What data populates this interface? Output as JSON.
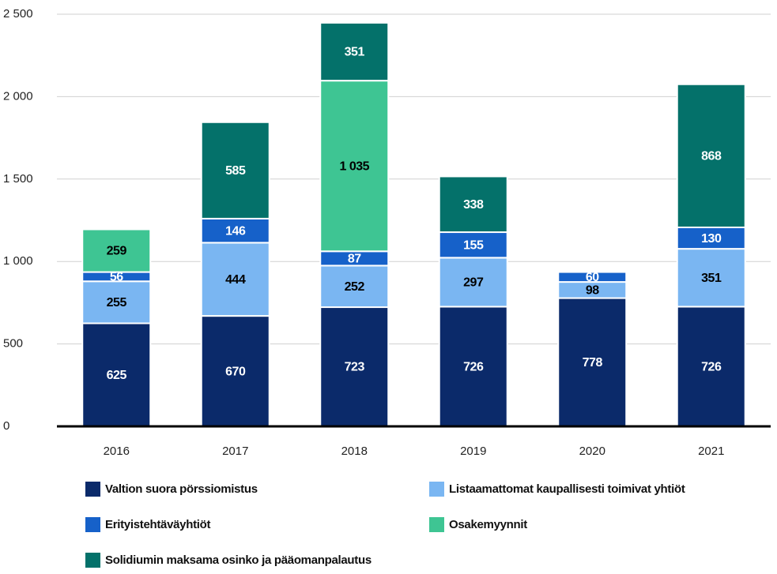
{
  "chart_data": {
    "type": "stacked_bar",
    "categories": [
      "2016",
      "2017",
      "2018",
      "2019",
      "2020",
      "2021"
    ],
    "series": [
      {
        "name": "Valtion suora pörssiomistus",
        "color": "#0b2a6a",
        "label_color": "#ffffff",
        "values": [
          625,
          670,
          723,
          726,
          778,
          726
        ]
      },
      {
        "name": "Listaamattomat kaupallisesti toimivat yhtiöt",
        "color": "#7ab6f2",
        "label_color": "#000000",
        "values": [
          255,
          444,
          252,
          297,
          98,
          351
        ]
      },
      {
        "name": "Erityistehtäväyhtiöt",
        "color": "#1661c9",
        "label_color": "#ffffff",
        "values": [
          56,
          146,
          87,
          155,
          60,
          130
        ]
      },
      {
        "name": "Osakemyynnit",
        "color": "#3ec593",
        "label_color": "#000000",
        "values": [
          259,
          null,
          1035,
          null,
          null,
          null
        ],
        "value_labels": [
          "259",
          null,
          "1 035",
          null,
          null,
          null
        ]
      },
      {
        "name": "Solidiumin maksama osinko ja pääomanpalautus",
        "color": "#04716a",
        "label_color": "#ffffff",
        "values": [
          null,
          585,
          351,
          338,
          null,
          868
        ]
      }
    ],
    "ylim": [
      0,
      2500
    ],
    "yticks": [
      0,
      500,
      {
        "value": 1000,
        "label": "1 000"
      },
      {
        "value": 1500,
        "label": "1 500"
      },
      {
        "value": 2000,
        "label": "2 000"
      },
      {
        "value": 2500,
        "label": "2 500"
      }
    ],
    "grid": true
  }
}
